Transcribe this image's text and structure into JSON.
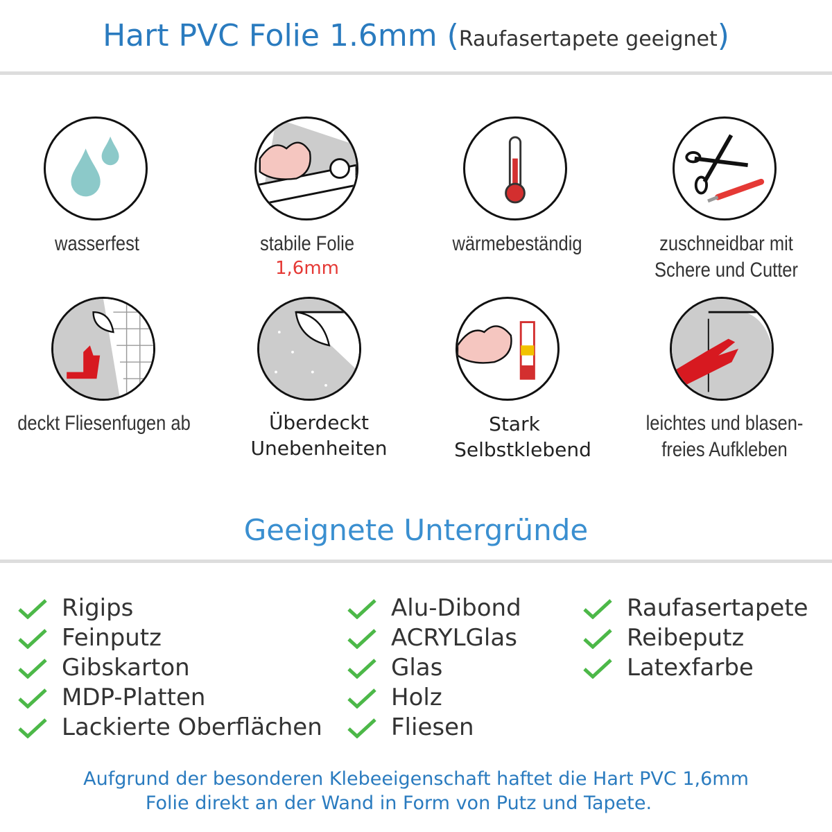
{
  "header": {
    "title_main": "Hart PVC Folie 1.6mm",
    "title_open": "(",
    "title_sub": "Raufasertapete geeignet",
    "title_close": ")"
  },
  "features": [
    {
      "icon": "water-drops-icon",
      "label": "wasserfest"
    },
    {
      "icon": "strong-arm-roll-icon",
      "label": "stabile Folie",
      "sublabel": "1,6mm"
    },
    {
      "icon": "thermometer-icon",
      "label": "wärmebeständig"
    },
    {
      "icon": "scissors-cutter-icon",
      "label": "zuschneidbar mit",
      "label2": "Schere und Cutter"
    },
    {
      "icon": "thumbs-up-tiles-icon",
      "label": "deckt Fliesenfugen ab"
    },
    {
      "icon": "foil-corner-icon",
      "label": "Überdeckt",
      "label2": "Unebenheiten"
    },
    {
      "icon": "strong-arm-glue-icon",
      "label": "Stark",
      "label2": "Selbstklebend"
    },
    {
      "icon": "hand-apply-icon",
      "label": "leichtes und blasen-",
      "label2": "freies Aufkleben"
    }
  ],
  "section": {
    "heading": "Geeignete Untergründe"
  },
  "surfaces": {
    "col1": [
      "Rigips",
      "Feinputz",
      "Gibskarton",
      "MDP-Platten",
      "Lackierte Oberflächen"
    ],
    "col2": [
      "Alu-Dibond",
      "ACRYLGlas",
      "Glas",
      "Holz",
      "Fliesen"
    ],
    "col3": [
      "Raufasertapete",
      "Reibeputz",
      "Latexfarbe"
    ]
  },
  "footer": {
    "line1": "Aufgrund der besonderen Klebeeigenschaft haftet die Hart PVC 1,6mm",
    "line2": "Folie direkt an der Wand in Form von Putz und Tapete."
  },
  "colors": {
    "title": "#2a7bbf",
    "heading": "#3a8fd0",
    "check": "#4cb848",
    "accent_red": "#e53935"
  }
}
